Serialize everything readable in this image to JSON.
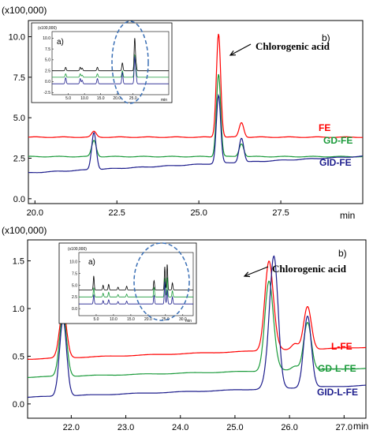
{
  "chart_data": [
    {
      "type": "line",
      "scale_label": "(x100,000)",
      "xlabel": "min",
      "xlim": [
        19.8,
        30.0
      ],
      "ylim": [
        -0.3,
        11.0
      ],
      "x_ticks": [
        "20.0",
        "22.5",
        "25.0",
        "27.5"
      ],
      "x_tick_values": [
        20.0,
        22.5,
        25.0,
        27.5
      ],
      "y_ticks": [
        "0.0",
        "2.5",
        "5.0",
        "7.5",
        "10.0"
      ],
      "y_tick_values": [
        0,
        2.5,
        5.0,
        7.5,
        10.0
      ],
      "panel_label": "b)",
      "annotation": "Chlorogenic acid",
      "annotation_x": 25.65,
      "peaks_x": [
        21.8,
        25.6,
        26.3
      ],
      "series": [
        {
          "name": "FE",
          "color": "#ff0000",
          "baseline": 3.8,
          "slope": 0.0,
          "peaks": [
            0.35,
            6.4,
            0.9
          ]
        },
        {
          "name": "GD-FE",
          "color": "#1a9a3a",
          "baseline": 2.6,
          "slope": 0.0,
          "peaks": [
            1.0,
            5.1,
            0.8
          ]
        },
        {
          "name": "GID-FE",
          "color": "#1c1c8c",
          "baseline": 1.6,
          "slope": 0.1,
          "peaks": [
            2.3,
            4.2,
            1.5
          ]
        }
      ],
      "inset": {
        "panel_label": "a)",
        "scale_label": "(x100,000)",
        "xlabel": "min",
        "xlim": [
          0,
          36
        ],
        "ylim": [
          -3.0,
          11.5
        ],
        "x_ticks": [
          "5.0",
          "10.0",
          "15.0",
          "20.0",
          "25.0"
        ],
        "x_tick_values": [
          5,
          10,
          15,
          20,
          25
        ],
        "y_ticks": [
          "-2.5",
          "0.0",
          "2.5",
          "5.0",
          "7.5",
          "10.0"
        ],
        "y_tick_values": [
          -2.5,
          0,
          2.5,
          5.0,
          7.5,
          10.0
        ],
        "series_colors": [
          "#000000",
          "#1a9a3a",
          "#1c1c8c"
        ],
        "baselines": [
          2.5,
          1.0,
          -0.5
        ],
        "peaks_x": [
          4.2,
          8.7,
          9.3,
          14.0,
          21.7,
          25.5,
          25.9
        ],
        "peak_heights": [
          [
            0.8,
            0.8,
            0.6,
            0.8,
            1.8,
            7.4,
            1.6
          ],
          [
            0.8,
            0.8,
            0.5,
            0.8,
            1.5,
            5.0,
            1.5
          ],
          [
            1.4,
            1.2,
            0.8,
            1.2,
            2.6,
            6.0,
            2.0
          ]
        ]
      }
    },
    {
      "type": "line",
      "scale_label": "(x100,000)",
      "xlabel": "min",
      "xlim": [
        21.2,
        27.4
      ],
      "ylim": [
        -0.15,
        1.72
      ],
      "x_ticks": [
        "22.0",
        "23.0",
        "24.0",
        "25.0",
        "26.0",
        "27.0"
      ],
      "x_tick_values": [
        22,
        23,
        24,
        25,
        26,
        27
      ],
      "y_ticks": [
        "0.0",
        "0.5",
        "1.0",
        "1.5"
      ],
      "y_tick_values": [
        0,
        0.5,
        1.0,
        1.5
      ],
      "panel_label": "b)",
      "annotation": "Chlorogenic acid",
      "annotation_x": 25.72,
      "peaks_x": [
        21.85,
        25.62,
        25.72,
        26.33,
        26.1
      ],
      "series": [
        {
          "name": "L-FE",
          "color": "#ff0000",
          "baseline": 0.47,
          "slope": 0.02,
          "peaks": [
            0.5,
            0.9,
            0.1,
            0.45,
            0.06
          ]
        },
        {
          "name": "GD-L-FE",
          "color": "#1a9a3a",
          "baseline": 0.28,
          "slope": 0.015,
          "peaks": [
            0.65,
            0.9,
            0.1,
            0.5,
            0.04
          ]
        },
        {
          "name": "GID-L-FE",
          "color": "#1c1c8c",
          "baseline": 0.07,
          "slope": 0.02,
          "peaks": [
            0.8,
            0.2,
            1.3,
            0.75,
            0.0
          ]
        }
      ],
      "inset": {
        "panel_label": "a)",
        "scale_label": "(x100,000)",
        "xlabel": "min",
        "xlim": [
          0,
          33
        ],
        "ylim": [
          -1.5,
          12.0
        ],
        "x_ticks": [
          "5.0",
          "10.0",
          "15.0",
          "20.0",
          "25.0",
          "30.0"
        ],
        "x_tick_values": [
          5,
          10,
          15,
          20,
          25,
          30
        ],
        "y_ticks": [
          "0.0",
          "2.5",
          "5.0",
          "7.5",
          "10.0"
        ],
        "y_tick_values": [
          0,
          2.5,
          5.0,
          7.5,
          10.0
        ],
        "series_colors": [
          "#000000",
          "#1a9a3a",
          "#1c1c8c"
        ],
        "baselines": [
          4.0,
          2.5,
          1.0
        ],
        "peaks_x": [
          4.3,
          7.0,
          8.6,
          11.3,
          13.8,
          21.7,
          24.8,
          25.5,
          27.0
        ],
        "peak_heights": [
          [
            3.0,
            1.0,
            1.2,
            0.6,
            0.8,
            2.0,
            5.0,
            5.5,
            1.5
          ],
          [
            2.0,
            0.8,
            1.0,
            0.5,
            0.6,
            2.0,
            4.0,
            4.2,
            1.3
          ],
          [
            2.0,
            0.7,
            0.9,
            0.5,
            0.6,
            1.8,
            4.8,
            3.0,
            1.5
          ]
        ]
      }
    }
  ]
}
